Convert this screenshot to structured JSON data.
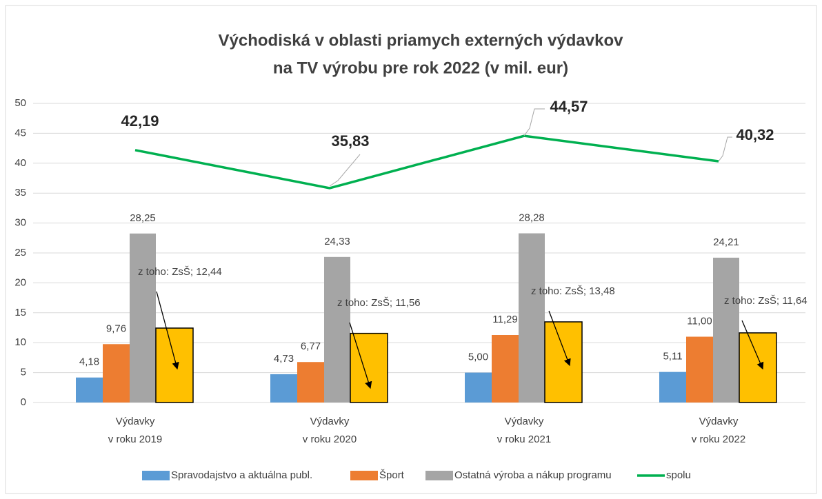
{
  "chart_data": {
    "type": "bar",
    "title": [
      "Východiská v oblasti priamych externých výdavkov",
      "na TV výrobu pre rok 2022 (v mil. eur)"
    ],
    "categories": [
      "Výdavky\nv roku 2019",
      "Výdavky\nv roku 2020",
      "Výdavky\nv roku 2021",
      "Výdavky\nv roku 2022"
    ],
    "ylim": [
      0,
      50
    ],
    "yticks": [
      0,
      5,
      10,
      15,
      20,
      25,
      30,
      35,
      40,
      45,
      50
    ],
    "grid": true,
    "legend": "bottom",
    "series": [
      {
        "name": "Spravodajstvo a aktuálna publ.",
        "type": "bar",
        "color": "#5b9bd5",
        "values": [
          4.18,
          4.73,
          5.0,
          5.11
        ],
        "value_labels": [
          "4,18",
          "4,73",
          "5,00",
          "5,11"
        ]
      },
      {
        "name": "Šport",
        "type": "bar",
        "color": "#ed7d31",
        "values": [
          9.76,
          6.77,
          11.29,
          11.0
        ],
        "value_labels": [
          "9,76",
          "6,77",
          "11,29",
          "11,00"
        ]
      },
      {
        "name": "Ostatná výroba a nákup programu",
        "type": "bar",
        "color": "#a5a5a5",
        "values": [
          28.25,
          24.33,
          28.28,
          24.21
        ],
        "value_labels": [
          "28,25",
          "24,33",
          "28,28",
          "24,21"
        ]
      },
      {
        "type": "bar",
        "color": "#ffc000",
        "edgecolor": "#000000",
        "in_legend": false,
        "values": [
          12.44,
          11.56,
          13.48,
          11.64
        ],
        "value_labels": [
          "z toho: ZsŠ; 12,44",
          "z toho: ZsŠ; 11,56",
          "z toho: ZsŠ; 13,48",
          "z toho: ZsŠ; 11,64"
        ]
      },
      {
        "name": "spolu",
        "type": "line",
        "color": "#00b050",
        "values": [
          42.19,
          35.83,
          44.57,
          40.32
        ],
        "value_labels": [
          "42,19",
          "35,83",
          "44,57",
          "40,32"
        ]
      }
    ]
  }
}
